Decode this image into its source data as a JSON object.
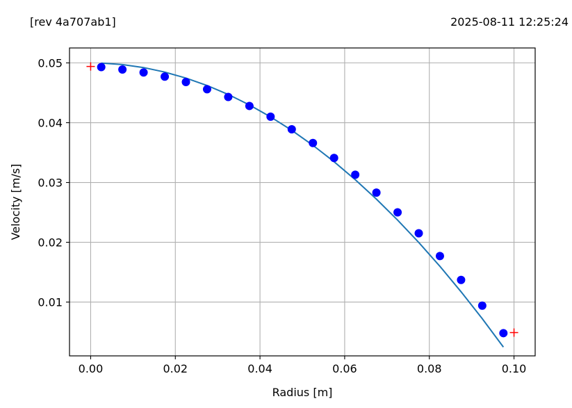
{
  "header": {
    "revision": "[rev 4a707ab1]",
    "timestamp": "2025-08-11 12:25:24"
  },
  "chart_data": {
    "type": "scatter",
    "title": "",
    "xlabel": "Radius [m]",
    "ylabel": "Velocity [m/s]",
    "xlim": [
      -0.005,
      0.105
    ],
    "ylim": [
      0.001,
      0.0525
    ],
    "grid": true,
    "xticks": [
      0.0,
      0.02,
      0.04,
      0.06,
      0.08,
      0.1
    ],
    "xtick_labels": [
      "0.00",
      "0.02",
      "0.04",
      "0.06",
      "0.08",
      "0.10"
    ],
    "yticks": [
      0.01,
      0.02,
      0.03,
      0.04,
      0.05
    ],
    "ytick_labels": [
      "0.01",
      "0.02",
      "0.03",
      "0.04",
      "0.05"
    ],
    "series": [
      {
        "kind": "scatter",
        "color": "#0000ff",
        "x": [
          0.0025,
          0.0075,
          0.0125,
          0.0175,
          0.0225,
          0.0275,
          0.0325,
          0.0375,
          0.0425,
          0.0475,
          0.0525,
          0.0575,
          0.0625,
          0.0675,
          0.0725,
          0.0775,
          0.0825,
          0.0875,
          0.0925,
          0.0975
        ],
        "y": [
          0.0493,
          0.0489,
          0.0484,
          0.0477,
          0.0468,
          0.0456,
          0.0443,
          0.0428,
          0.041,
          0.0389,
          0.0366,
          0.0341,
          0.0313,
          0.0283,
          0.025,
          0.0215,
          0.0177,
          0.0137,
          0.0094,
          0.0048
        ]
      },
      {
        "kind": "line",
        "color": "#1f77b4",
        "x": [
          0.0025,
          0.0075,
          0.0125,
          0.0175,
          0.0225,
          0.0275,
          0.0325,
          0.0375,
          0.0425,
          0.0475,
          0.0525,
          0.0575,
          0.0625,
          0.0675,
          0.0725,
          0.0775,
          0.0825,
          0.0875,
          0.0925,
          0.0975
        ],
        "y": [
          0.04997,
          0.04972,
          0.04922,
          0.04847,
          0.04747,
          0.04622,
          0.04472,
          0.04297,
          0.04097,
          0.03872,
          0.03622,
          0.03347,
          0.03047,
          0.02722,
          0.02372,
          0.01997,
          0.01597,
          0.01172,
          0.00722,
          0.00247
        ]
      },
      {
        "kind": "plus",
        "color": "#ff0000",
        "x": [
          0.0,
          0.1
        ],
        "y": [
          0.0494,
          0.0049
        ]
      }
    ]
  }
}
